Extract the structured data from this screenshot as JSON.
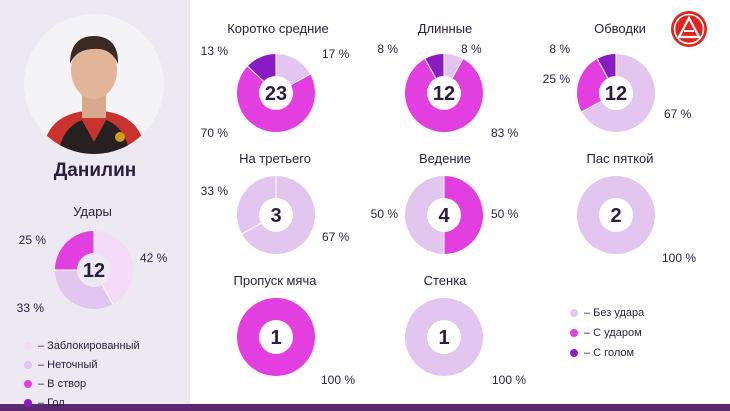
{
  "player": {
    "name": "Данилин"
  },
  "colors": {
    "shots_blocked": "#f4dcf8",
    "shots_inaccurate": "#e2c6ef",
    "shots_on_target": "#e23ee0",
    "shots_goal": "#8a1cc4",
    "pass_no_shot": "#e2c6ef",
    "pass_shot": "#e23ee0",
    "pass_goal": "#8a1cc4"
  },
  "legend_shots": [
    {
      "label": "– Заблокированный",
      "color_key": "shots_blocked"
    },
    {
      "label": "– Неточный",
      "color_key": "shots_inaccurate"
    },
    {
      "label": "– В створ",
      "color_key": "shots_on_target"
    },
    {
      "label": "– Гол",
      "color_key": "shots_goal"
    }
  ],
  "legend_passes": [
    {
      "label": "– Без удара",
      "color_key": "pass_no_shot"
    },
    {
      "label": "– С ударом",
      "color_key": "pass_shot"
    },
    {
      "label": "– С голом",
      "color_key": "pass_goal"
    }
  ],
  "chart_data": [
    {
      "type": "pie",
      "id": "shots",
      "title": "Удары",
      "total": "12",
      "slices": [
        {
          "name": "Заблокированный",
          "value": 42,
          "label": "42 %",
          "color_key": "shots_blocked"
        },
        {
          "name": "Неточный",
          "value": 33,
          "label": "33 %",
          "color_key": "shots_inaccurate"
        },
        {
          "name": "В створ",
          "value": 25,
          "label": "25 %",
          "color_key": "shots_on_target"
        }
      ]
    },
    {
      "type": "pie",
      "id": "short-medium",
      "title": "Коротко средние",
      "total": "23",
      "slices": [
        {
          "name": "Без удара",
          "value": 17,
          "label": "17 %",
          "color_key": "pass_no_shot"
        },
        {
          "name": "С ударом",
          "value": 70,
          "label": "70 %",
          "color_key": "pass_shot"
        },
        {
          "name": "С голом",
          "value": 13,
          "label": "13 %",
          "color_key": "pass_goal"
        }
      ]
    },
    {
      "type": "pie",
      "id": "long",
      "title": "Длинные",
      "total": "12",
      "slices": [
        {
          "name": "Без удара",
          "value": 8,
          "label": "8 %",
          "color_key": "pass_no_shot"
        },
        {
          "name": "С ударом",
          "value": 83,
          "label": "83 %",
          "color_key": "pass_shot"
        },
        {
          "name": "С голом",
          "value": 8,
          "label": "8 %",
          "color_key": "pass_goal"
        }
      ]
    },
    {
      "type": "pie",
      "id": "dribbles",
      "title": "Обводки",
      "total": "12",
      "slices": [
        {
          "name": "Без удара",
          "value": 67,
          "label": "67 %",
          "color_key": "pass_no_shot"
        },
        {
          "name": "С ударом",
          "value": 25,
          "label": "25 %",
          "color_key": "pass_shot"
        },
        {
          "name": "С голом",
          "value": 8,
          "label": "8 %",
          "color_key": "pass_goal"
        }
      ]
    },
    {
      "type": "pie",
      "id": "third-man",
      "title": "На третьего",
      "total": "3",
      "slices": [
        {
          "name": "Без удара",
          "value": 67,
          "label": "67 %",
          "color_key": "pass_no_shot"
        },
        {
          "name": "Без удара",
          "value": 33,
          "label": "33 %",
          "color_key": "pass_no_shot"
        }
      ]
    },
    {
      "type": "pie",
      "id": "carry",
      "title": "Ведение",
      "total": "4",
      "slices": [
        {
          "name": "С ударом",
          "value": 50,
          "label": "50 %",
          "color_key": "pass_shot"
        },
        {
          "name": "Без удара",
          "value": 50,
          "label": "50 %",
          "color_key": "pass_no_shot"
        }
      ]
    },
    {
      "type": "pie",
      "id": "heel-pass",
      "title": "Пас пяткой",
      "total": "2",
      "slices": [
        {
          "name": "Без удара",
          "value": 100,
          "label": "100 %",
          "color_key": "pass_no_shot"
        }
      ]
    },
    {
      "type": "pie",
      "id": "dummy",
      "title": "Пропуск мяча",
      "total": "1",
      "slices": [
        {
          "name": "С ударом",
          "value": 100,
          "label": "100 %",
          "color_key": "pass_shot"
        }
      ]
    },
    {
      "type": "pie",
      "id": "wall-pass",
      "title": "Стенка",
      "total": "1",
      "slices": [
        {
          "name": "Без удара",
          "value": 100,
          "label": "100 %",
          "color_key": "pass_no_shot"
        }
      ]
    }
  ]
}
